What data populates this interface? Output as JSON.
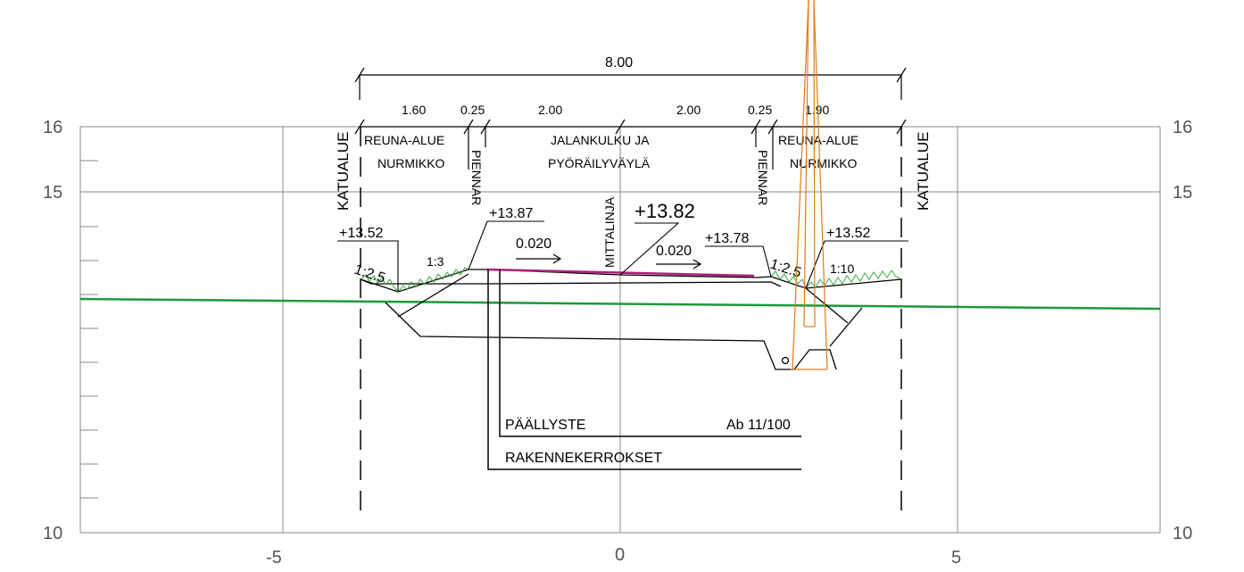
{
  "axes": {
    "y_ticks": [
      "16",
      "15",
      "10"
    ],
    "x_ticks": [
      "-5",
      "0",
      "5"
    ]
  },
  "dimensions": {
    "total": "8.00",
    "segments": [
      "1.60",
      "0.25",
      "2.00",
      "2.00",
      "0.25",
      "1.90"
    ]
  },
  "labels": {
    "katualue_left": "KATUALUE",
    "katualue_right": "KATUALUE",
    "reuna_left_1": "REUNA-ALUE",
    "reuna_left_2": "NURMIKKO",
    "reuna_right_1": "REUNA-ALUE",
    "reuna_right_2": "NURMIKKO",
    "pathway_1": "JALANKULKU JA",
    "pathway_2": "PYÖRÄILYVÄYLÄ",
    "piennar_left": "PIENNAR",
    "piennar_right": "PIENNAR",
    "mittalinja": "MITTALINJA"
  },
  "elevations": {
    "left_edge": "+13.52",
    "left_shoulder": "+13.87",
    "center": "+13.82",
    "right_shoulder": "+13.78",
    "right_edge": "+13.52"
  },
  "slopes": {
    "left_outer": "1:2.5",
    "left_inner": "1:3",
    "cross_left": "0.020",
    "cross_right": "0.020",
    "right_inner": "1:2.5",
    "right_outer": "1:10"
  },
  "callouts": {
    "paallyste": "PÄÄLLYSTE",
    "paallyste_spec": "Ab 11/100",
    "rakennekerrokset": "RAKENNEKERROKSET"
  },
  "colors": {
    "ground_line": "#1a9a3a",
    "grass": "#3aa83a",
    "surface": "#b0207a",
    "pole": "#e07a1a",
    "grid": "#888888"
  }
}
